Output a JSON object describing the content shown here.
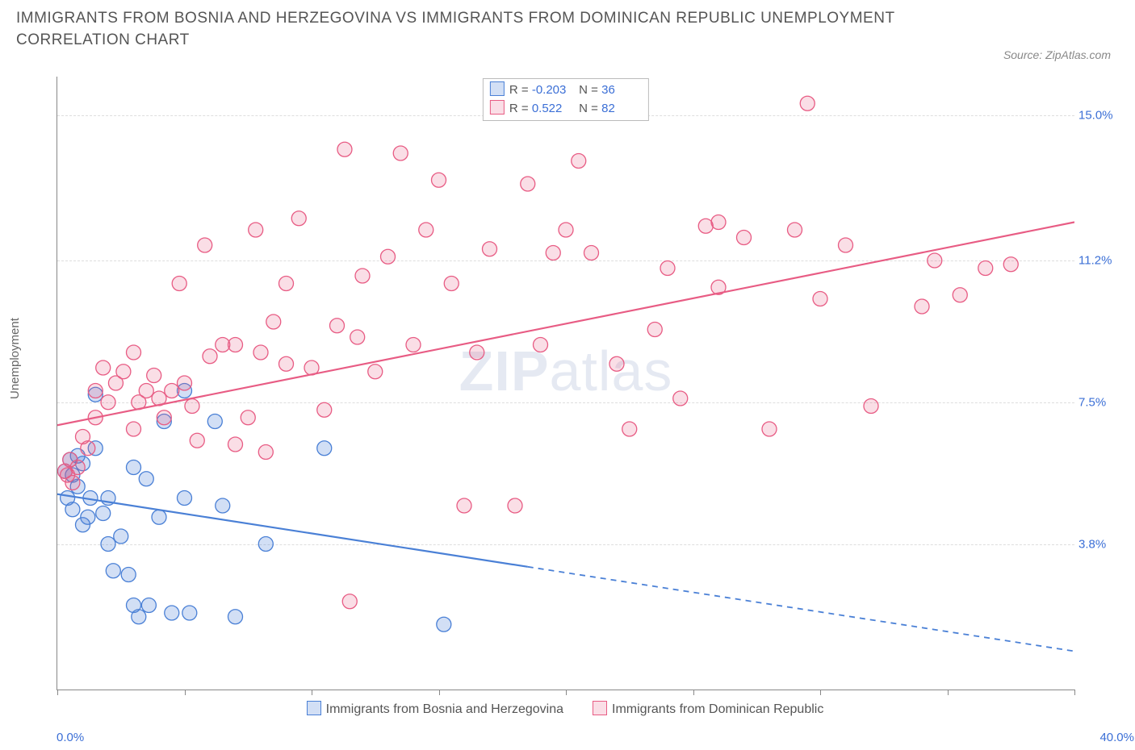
{
  "header": {
    "title": "IMMIGRANTS FROM BOSNIA AND HERZEGOVINA VS IMMIGRANTS FROM DOMINICAN REPUBLIC UNEMPLOYMENT CORRELATION CHART",
    "source": "Source: ZipAtlas.com"
  },
  "watermark": {
    "part1": "ZIP",
    "part2": "atlas"
  },
  "chart": {
    "type": "scatter",
    "ylabel": "Unemployment",
    "xlim": [
      0,
      40
    ],
    "ylim": [
      0,
      16
    ],
    "x_ticks_at": [
      0,
      5,
      10,
      15,
      20,
      25,
      30,
      35,
      40
    ],
    "x_label_min": "0.0%",
    "x_label_max": "40.0%",
    "y_grid": [
      {
        "value": 3.8,
        "label": "3.8%"
      },
      {
        "value": 7.5,
        "label": "7.5%"
      },
      {
        "value": 11.2,
        "label": "11.2%"
      },
      {
        "value": 15.0,
        "label": "15.0%"
      }
    ],
    "background_color": "#ffffff",
    "grid_color": "#dddddd",
    "axis_color": "#888888",
    "tick_label_color": "#3b6fd6",
    "marker_radius": 9,
    "marker_stroke_width": 1.3,
    "trend_line_width": 2.2,
    "series": [
      {
        "id": "bosnia",
        "label": "Immigrants from Bosnia and Herzegovina",
        "fill": "rgba(74,128,214,0.25)",
        "stroke": "#4a80d6",
        "stats": {
          "R": "-0.203",
          "N": "36"
        },
        "trend": {
          "x1": 0,
          "y1": 5.1,
          "x2": 40,
          "y2": 1.0,
          "solid_until_x": 18.5
        },
        "points": [
          [
            0.3,
            5.7
          ],
          [
            0.4,
            5.0
          ],
          [
            0.5,
            6.0
          ],
          [
            0.6,
            4.7
          ],
          [
            0.6,
            5.6
          ],
          [
            0.8,
            5.3
          ],
          [
            0.8,
            6.1
          ],
          [
            1.0,
            4.3
          ],
          [
            1.0,
            5.9
          ],
          [
            1.2,
            4.5
          ],
          [
            1.3,
            5.0
          ],
          [
            1.5,
            6.3
          ],
          [
            1.5,
            7.7
          ],
          [
            1.8,
            4.6
          ],
          [
            2.0,
            3.8
          ],
          [
            2.0,
            5.0
          ],
          [
            2.2,
            3.1
          ],
          [
            2.5,
            4.0
          ],
          [
            2.8,
            3.0
          ],
          [
            3.0,
            2.2
          ],
          [
            3.0,
            5.8
          ],
          [
            3.2,
            1.9
          ],
          [
            3.5,
            5.5
          ],
          [
            3.6,
            2.2
          ],
          [
            4.0,
            4.5
          ],
          [
            4.2,
            7.0
          ],
          [
            4.5,
            2.0
          ],
          [
            5.0,
            7.8
          ],
          [
            5.0,
            5.0
          ],
          [
            5.2,
            2.0
          ],
          [
            6.2,
            7.0
          ],
          [
            6.5,
            4.8
          ],
          [
            7.0,
            1.9
          ],
          [
            8.2,
            3.8
          ],
          [
            10.5,
            6.3
          ],
          [
            15.2,
            1.7
          ]
        ]
      },
      {
        "id": "dominican",
        "label": "Immigrants from Dominican Republic",
        "fill": "rgba(232,92,132,0.20)",
        "stroke": "#e85c84",
        "stats": {
          "R": "0.522",
          "N": "82"
        },
        "trend": {
          "x1": 0,
          "y1": 6.9,
          "x2": 40,
          "y2": 12.2,
          "solid_until_x": 40
        },
        "points": [
          [
            0.3,
            5.7
          ],
          [
            0.4,
            5.6
          ],
          [
            0.5,
            6.0
          ],
          [
            0.6,
            5.4
          ],
          [
            0.8,
            5.8
          ],
          [
            1.0,
            6.6
          ],
          [
            1.2,
            6.3
          ],
          [
            1.5,
            7.8
          ],
          [
            1.5,
            7.1
          ],
          [
            1.8,
            8.4
          ],
          [
            2.0,
            7.5
          ],
          [
            2.3,
            8.0
          ],
          [
            2.6,
            8.3
          ],
          [
            3.0,
            6.8
          ],
          [
            3.0,
            8.8
          ],
          [
            3.2,
            7.5
          ],
          [
            3.5,
            7.8
          ],
          [
            3.8,
            8.2
          ],
          [
            4.0,
            7.6
          ],
          [
            4.2,
            7.1
          ],
          [
            4.5,
            7.8
          ],
          [
            4.8,
            10.6
          ],
          [
            5.0,
            8.0
          ],
          [
            5.3,
            7.4
          ],
          [
            5.5,
            6.5
          ],
          [
            5.8,
            11.6
          ],
          [
            6.0,
            8.7
          ],
          [
            6.5,
            9.0
          ],
          [
            7.0,
            6.4
          ],
          [
            7.0,
            9.0
          ],
          [
            7.5,
            7.1
          ],
          [
            7.8,
            12.0
          ],
          [
            8.0,
            8.8
          ],
          [
            8.2,
            6.2
          ],
          [
            8.5,
            9.6
          ],
          [
            9.0,
            8.5
          ],
          [
            9.0,
            10.6
          ],
          [
            9.5,
            12.3
          ],
          [
            10.0,
            8.4
          ],
          [
            10.5,
            7.3
          ],
          [
            11.0,
            9.5
          ],
          [
            11.3,
            14.1
          ],
          [
            11.5,
            2.3
          ],
          [
            11.8,
            9.2
          ],
          [
            12.0,
            10.8
          ],
          [
            12.5,
            8.3
          ],
          [
            13.0,
            11.3
          ],
          [
            13.5,
            14.0
          ],
          [
            14.0,
            9.0
          ],
          [
            14.5,
            12.0
          ],
          [
            15.0,
            13.3
          ],
          [
            15.5,
            10.6
          ],
          [
            16.0,
            4.8
          ],
          [
            16.5,
            8.8
          ],
          [
            17.0,
            11.5
          ],
          [
            18.0,
            4.8
          ],
          [
            18.5,
            13.2
          ],
          [
            19.0,
            9.0
          ],
          [
            19.5,
            11.4
          ],
          [
            20.0,
            12.0
          ],
          [
            20.5,
            13.8
          ],
          [
            21.0,
            11.4
          ],
          [
            22.0,
            8.5
          ],
          [
            22.5,
            6.8
          ],
          [
            23.5,
            9.4
          ],
          [
            24.0,
            11.0
          ],
          [
            24.5,
            7.6
          ],
          [
            25.5,
            12.1
          ],
          [
            26.0,
            10.5
          ],
          [
            26.0,
            12.2
          ],
          [
            27.0,
            11.8
          ],
          [
            28.0,
            6.8
          ],
          [
            29.0,
            12.0
          ],
          [
            29.5,
            15.3
          ],
          [
            30.0,
            10.2
          ],
          [
            31.0,
            11.6
          ],
          [
            32.0,
            7.4
          ],
          [
            34.0,
            10.0
          ],
          [
            34.5,
            11.2
          ],
          [
            35.5,
            10.3
          ],
          [
            36.5,
            11.0
          ],
          [
            37.5,
            11.1
          ]
        ]
      }
    ]
  }
}
